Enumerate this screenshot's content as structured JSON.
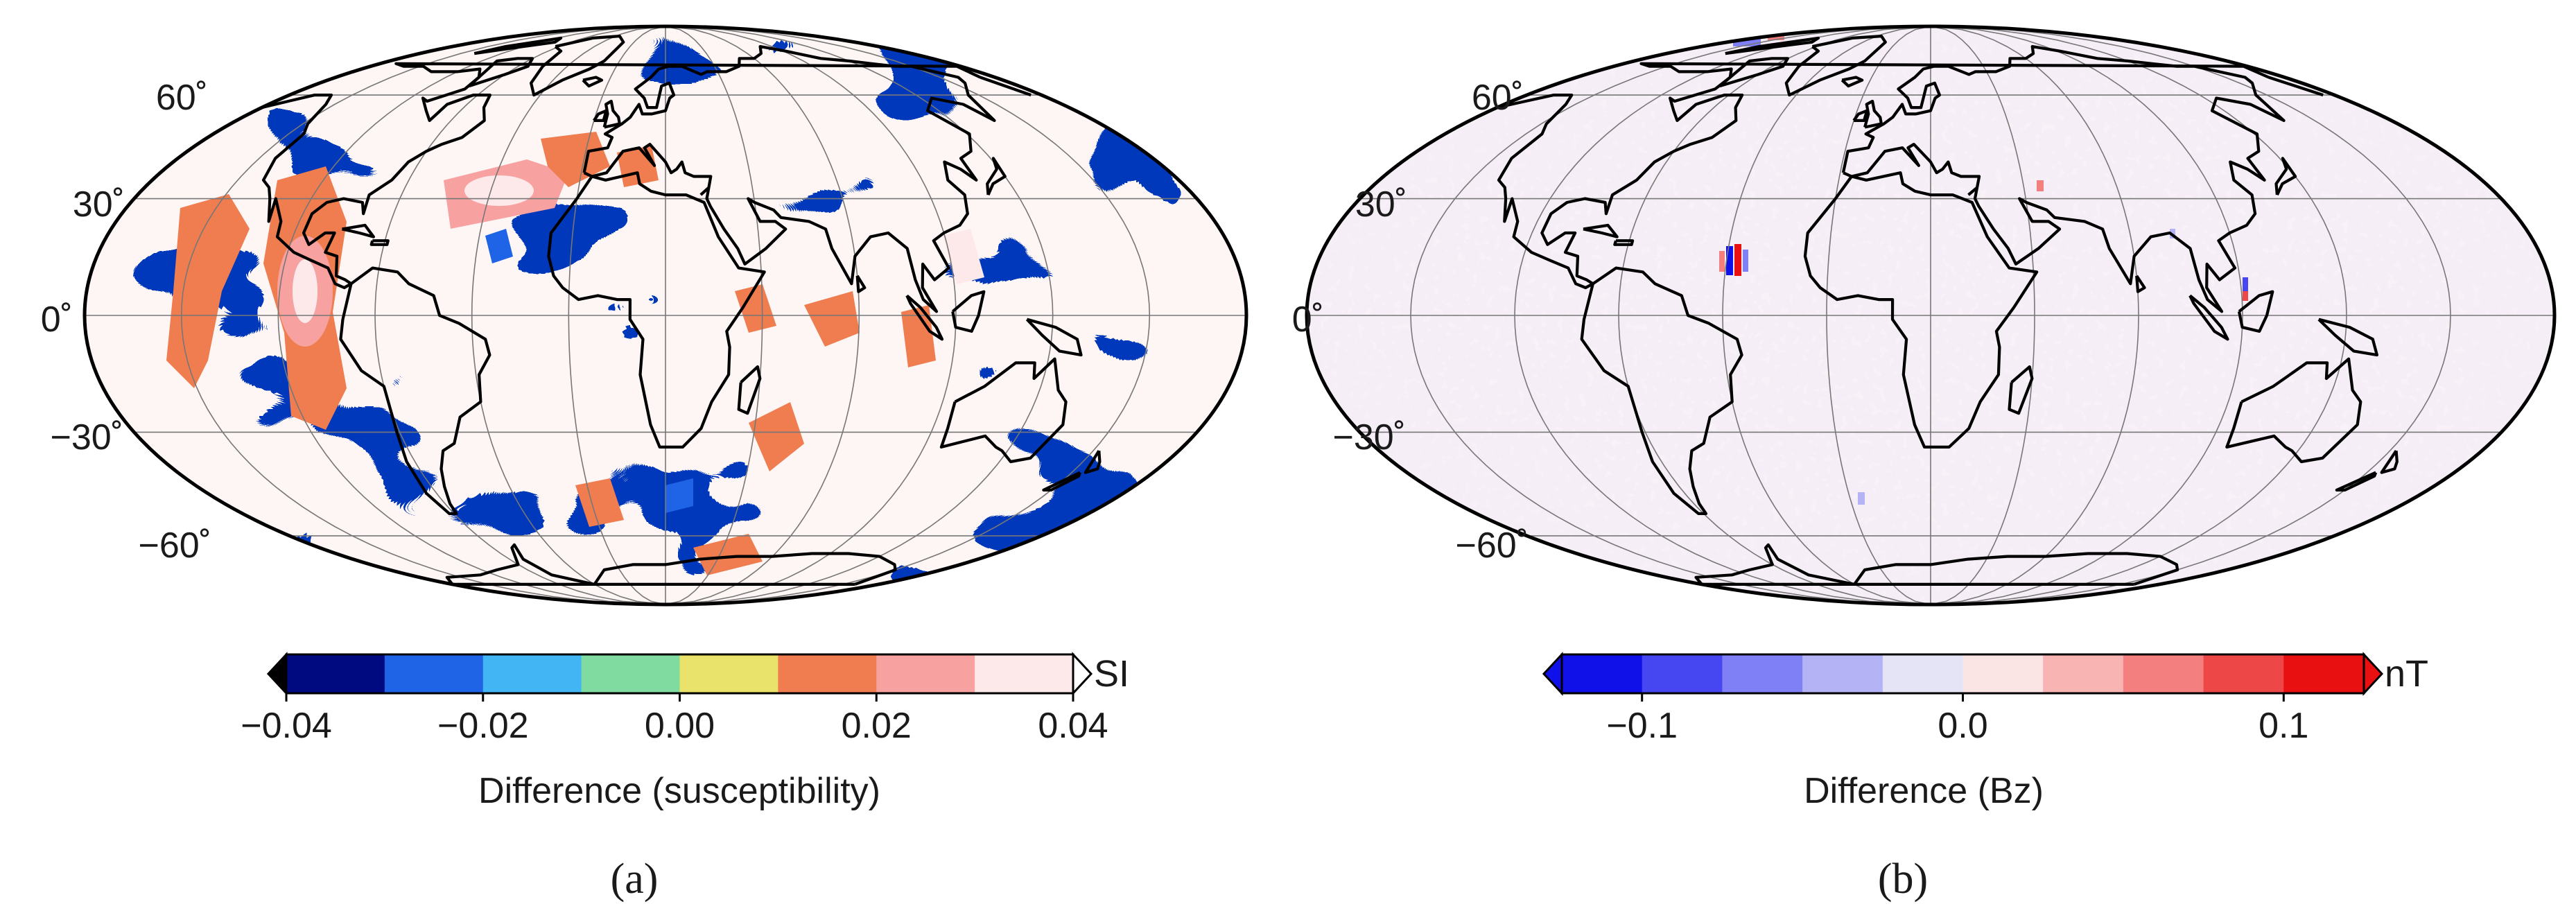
{
  "panels": [
    {
      "id": "a",
      "panel_label": "(a)",
      "lat_labels": [
        "60˚",
        "30˚",
        "0˚",
        "−30˚",
        "−60˚"
      ],
      "field": "susceptibility",
      "colorbar": {
        "colors": [
          "#000a80",
          "#1f64e6",
          "#42b6f4",
          "#7fdb9f",
          "#e9e36b",
          "#ef7d4f",
          "#f7a1a1",
          "#fde9e9"
        ],
        "extend_low_color": "#000000",
        "extend_high_color": "#ffffff",
        "boundaries": [
          -0.04,
          -0.03,
          -0.02,
          -0.01,
          0.0,
          0.01,
          0.02,
          0.03,
          0.04
        ],
        "tick_labels": [
          "−0.04",
          "−0.02",
          "0.00",
          "0.02",
          "0.04"
        ],
        "tick_values": [
          -0.04,
          -0.02,
          0.0,
          0.02,
          0.04
        ],
        "unit": "SI",
        "title": "Difference (susceptibility)"
      }
    },
    {
      "id": "b",
      "panel_label": "(b)",
      "lat_labels": [
        "60˚",
        "30˚",
        "0˚",
        "−30˚",
        "−60˚"
      ],
      "field": "bz",
      "colorbar": {
        "colors": [
          "#1010e8",
          "#4747f2",
          "#7f7ff6",
          "#b3b3f5",
          "#e4e4f6",
          "#fbe4e4",
          "#f8b3b3",
          "#f47f7f",
          "#ee4747",
          "#e81010"
        ],
        "extend_low_color": "#1010e8",
        "extend_high_color": "#e81010",
        "boundaries": [
          -0.125,
          -0.1,
          -0.075,
          -0.05,
          -0.025,
          0.0,
          0.025,
          0.05,
          0.075,
          0.1,
          0.125
        ],
        "tick_labels": [
          "−0.1",
          "0.0",
          "0.1"
        ],
        "tick_values": [
          -0.1,
          0.0,
          0.1
        ],
        "unit": "nT",
        "title": "Difference (Bz)"
      }
    }
  ]
}
